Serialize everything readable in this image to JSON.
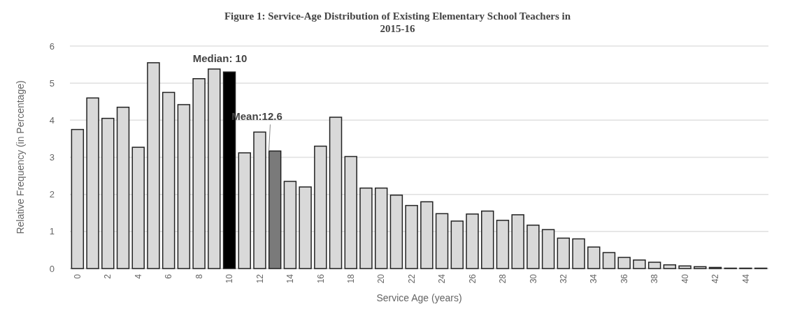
{
  "chart_data": {
    "type": "bar",
    "title": "Figure 1: Service-Age Distribution of Existing Elementary School Teachers in\n2015-16",
    "xlabel": "Service Age (years)",
    "ylabel": "Relative Frequency (in Percentage)",
    "x": [
      0,
      1,
      2,
      3,
      4,
      5,
      6,
      7,
      8,
      9,
      10,
      11,
      12,
      13,
      14,
      15,
      16,
      17,
      18,
      19,
      20,
      21,
      22,
      23,
      24,
      25,
      26,
      27,
      28,
      29,
      30,
      31,
      32,
      33,
      34,
      35,
      36,
      37,
      38,
      39,
      40,
      41,
      42,
      43,
      44,
      45
    ],
    "values": [
      3.75,
      4.6,
      4.05,
      4.35,
      3.27,
      5.55,
      4.75,
      4.42,
      5.12,
      5.38,
      5.3,
      3.12,
      3.68,
      3.17,
      2.35,
      2.2,
      3.3,
      4.08,
      3.02,
      2.17,
      2.17,
      1.98,
      1.7,
      1.8,
      1.48,
      1.28,
      1.47,
      1.55,
      1.3,
      1.45,
      1.17,
      1.05,
      0.82,
      0.8,
      0.58,
      0.43,
      0.3,
      0.23,
      0.17,
      0.1,
      0.07,
      0.05,
      0.03,
      0.01,
      0.01,
      0.01
    ],
    "colors": [
      "#d9d9d9",
      "#d9d9d9",
      "#d9d9d9",
      "#d9d9d9",
      "#d9d9d9",
      "#d9d9d9",
      "#d9d9d9",
      "#d9d9d9",
      "#d9d9d9",
      "#d9d9d9",
      "#000000",
      "#d9d9d9",
      "#d9d9d9",
      "#7a7a7a",
      "#d9d9d9",
      "#d9d9d9",
      "#d9d9d9",
      "#d9d9d9",
      "#d9d9d9",
      "#d9d9d9",
      "#d9d9d9",
      "#d9d9d9",
      "#d9d9d9",
      "#d9d9d9",
      "#d9d9d9",
      "#d9d9d9",
      "#d9d9d9",
      "#d9d9d9",
      "#d9d9d9",
      "#d9d9d9",
      "#d9d9d9",
      "#d9d9d9",
      "#d9d9d9",
      "#d9d9d9",
      "#d9d9d9",
      "#d9d9d9",
      "#d9d9d9",
      "#d9d9d9",
      "#d9d9d9",
      "#d9d9d9",
      "#d9d9d9",
      "#d9d9d9",
      "#d9d9d9",
      "#d9d9d9",
      "#d9d9d9",
      "#d9d9d9"
    ],
    "xlim": [
      -0.5,
      45.5
    ],
    "xticks": [
      0,
      2,
      4,
      6,
      8,
      10,
      12,
      14,
      16,
      18,
      20,
      22,
      24,
      26,
      28,
      30,
      32,
      34,
      36,
      38,
      40,
      42,
      44
    ],
    "ylim": [
      0,
      6
    ],
    "yticks": [
      0,
      1,
      2,
      3,
      4,
      5,
      6
    ],
    "grid": "y",
    "annotations": [
      {
        "text": "Median: 10",
        "x": 10,
        "y": 5.3
      },
      {
        "text": "Mean:12.6",
        "x": 12.6,
        "y": 3.17
      }
    ]
  }
}
